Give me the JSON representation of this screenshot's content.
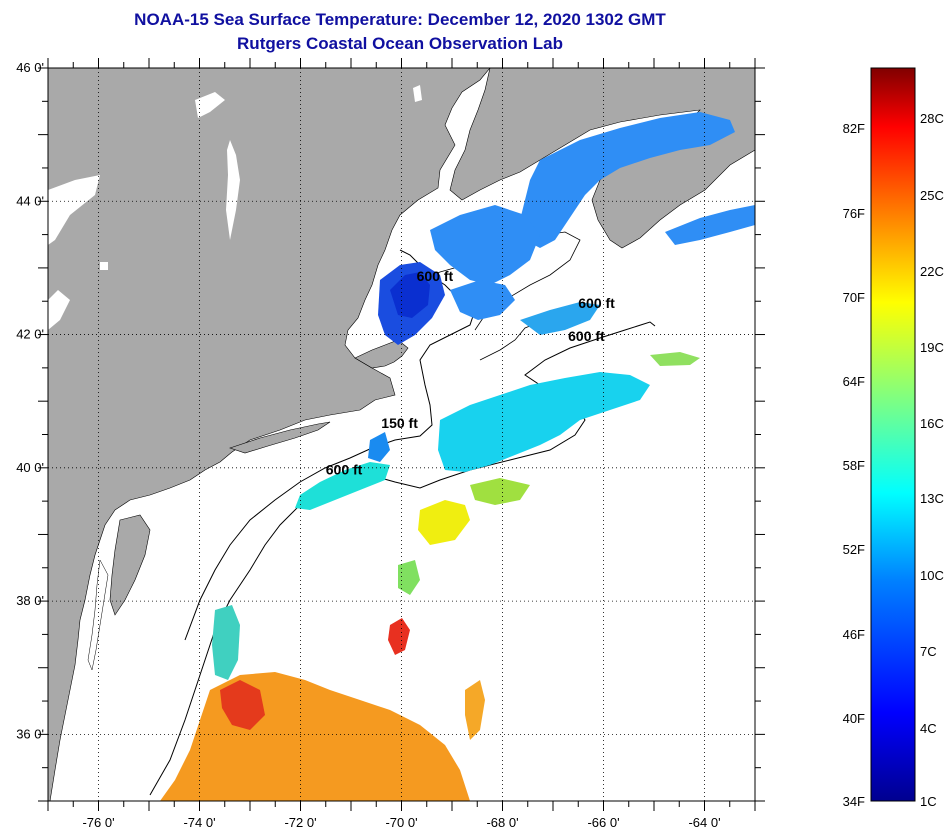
{
  "title": "NOAA-15 Sea Surface Temperature:  December 12, 2020 1302 GMT",
  "subtitle": "Rutgers Coastal Ocean Observation Lab",
  "map": {
    "lon_range": [
      -77,
      -63
    ],
    "lat_range": [
      35,
      46
    ],
    "x_ticks": [
      {
        "lon": -76,
        "label": "-76 0'"
      },
      {
        "lon": -74,
        "label": "-74 0'"
      },
      {
        "lon": -72,
        "label": "-72 0'"
      },
      {
        "lon": -70,
        "label": "-70 0'"
      },
      {
        "lon": -68,
        "label": "-68 0'"
      },
      {
        "lon": -66,
        "label": "-66 0'"
      },
      {
        "lon": -64,
        "label": "-64 0'"
      }
    ],
    "y_ticks": [
      {
        "lat": 46,
        "label": "46 0'"
      },
      {
        "lat": 44,
        "label": "44 0'"
      },
      {
        "lat": 42,
        "label": "42 0'"
      },
      {
        "lat": 40,
        "label": "40 0'"
      },
      {
        "lat": 38,
        "label": "38 0'"
      },
      {
        "lat": 36,
        "label": "36 0'"
      }
    ],
    "contour_labels": [
      {
        "text": "600 ft",
        "lon": -69.7,
        "lat": 42.8
      },
      {
        "text": "600 ft",
        "lon": -66.5,
        "lat": 42.4
      },
      {
        "text": "600 ft",
        "lon": -66.7,
        "lat": 41.9
      },
      {
        "text": "150 ft",
        "lon": -70.4,
        "lat": 40.6
      },
      {
        "text": "600 ft",
        "lon": -71.5,
        "lat": 39.9
      }
    ],
    "colors": {
      "land": "#a9a9a9",
      "ocean": "#ffffff",
      "grid": "#000000"
    }
  },
  "colorbar": {
    "fahrenheit": [
      "82F",
      "76F",
      "70F",
      "64F",
      "58F",
      "52F",
      "46F",
      "40F",
      "34F"
    ],
    "celsius": [
      "28C",
      "25C",
      "22C",
      "19C",
      "16C",
      "13C",
      "10C",
      "7C",
      "4C",
      "1C"
    ]
  }
}
